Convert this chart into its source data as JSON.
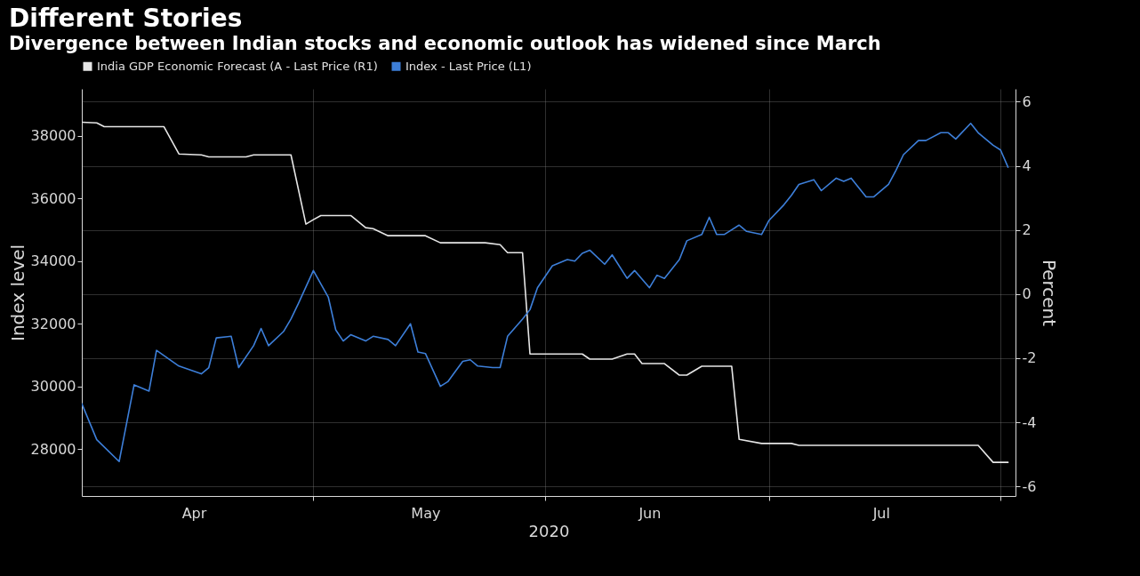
{
  "chart_data": {
    "type": "line",
    "title": "Different Stories",
    "subtitle": "Divergence between Indian stocks and economic outlook has widened since March",
    "xlabel": "2020",
    "ylabel": "Index level",
    "y2label": "Percent",
    "xlim": [
      "--03-31",
      "--08-03"
    ],
    "xticks": [
      {
        "value": "--04-15",
        "label": "Apr"
      },
      {
        "value": "--05-01",
        "label": null
      },
      {
        "value": "--05-16",
        "label": "May"
      },
      {
        "value": "--06-01",
        "label": null
      },
      {
        "value": "--06-15",
        "label": "Jun"
      },
      {
        "value": "--07-01",
        "label": null
      },
      {
        "value": "--07-16",
        "label": "Jul"
      },
      {
        "value": "--08-01",
        "label": null
      }
    ],
    "ylim": [
      26500,
      39500
    ],
    "yticks": [
      28000,
      30000,
      32000,
      34000,
      36000,
      38000
    ],
    "y2lim": [
      -6.3,
      6.4
    ],
    "y2ticks": [
      -6,
      -4,
      -2,
      0,
      2,
      4,
      6
    ],
    "grid": true,
    "legend": "top left",
    "line_style": "solid",
    "series": [
      {
        "name": "India GDP Economic Forecast (A - Last Price (R1)",
        "color": "#e6e6e6",
        "axis": "y2",
        "x": [
          "--03-31",
          "--04-02",
          "--04-03",
          "--04-11",
          "--04-13",
          "--04-16",
          "--04-17",
          "--04-22",
          "--04-23",
          "--04-28",
          "--04-30",
          "--05-01",
          "--05-02",
          "--05-06",
          "--05-08",
          "--05-09",
          "--05-11",
          "--05-16",
          "--05-18",
          "--05-24",
          "--05-26",
          "--05-27",
          "--05-29",
          "--05-30",
          "--06-06",
          "--06-07",
          "--06-10",
          "--06-12",
          "--06-13",
          "--06-14",
          "--06-17",
          "--06-19",
          "--06-20",
          "--06-22",
          "--06-26",
          "--06-27",
          "--06-30",
          "--07-04",
          "--07-05",
          "--07-29",
          "--07-31",
          "--08-02"
        ],
        "values": [
          5.36,
          5.34,
          5.22,
          5.22,
          4.37,
          4.34,
          4.28,
          4.28,
          4.34,
          4.34,
          2.18,
          2.32,
          2.45,
          2.45,
          2.07,
          2.04,
          1.82,
          1.82,
          1.6,
          1.6,
          1.54,
          1.29,
          1.29,
          -1.87,
          -1.87,
          -2.03,
          -2.03,
          -1.87,
          -1.87,
          -2.17,
          -2.17,
          -2.53,
          -2.53,
          -2.25,
          -2.25,
          -4.53,
          -4.66,
          -4.66,
          -4.72,
          -4.72,
          -5.25,
          -5.25
        ]
      },
      {
        "name": "Index - Last Price (L1)",
        "color": "#3d7fd9",
        "x": [
          "--03-31",
          "--04-02",
          "--04-05",
          "--04-07",
          "--04-09",
          "--04-10",
          "--04-13",
          "--04-16",
          "--04-17",
          "--04-18",
          "--04-20",
          "--04-21",
          "--04-23",
          "--04-24",
          "--04-25",
          "--04-27",
          "--04-28",
          "--04-29",
          "--05-01",
          "--05-03",
          "--05-04",
          "--05-05",
          "--05-06",
          "--05-08",
          "--05-09",
          "--05-11",
          "--05-12",
          "--05-14",
          "--05-15",
          "--05-16",
          "--05-18",
          "--05-19",
          "--05-21",
          "--05-22",
          "--05-23",
          "--05-25",
          "--05-26",
          "--05-27",
          "--05-29",
          "--05-30",
          "--05-31",
          "--06-02",
          "--06-04",
          "--06-05",
          "--06-06",
          "--06-07",
          "--06-09",
          "--06-10",
          "--06-12",
          "--06-13",
          "--06-15",
          "--06-16",
          "--06-17",
          "--06-19",
          "--06-20",
          "--06-22",
          "--06-23",
          "--06-24",
          "--06-25",
          "--06-27",
          "--06-28",
          "--06-30",
          "--07-01",
          "--07-03",
          "--07-04",
          "--07-05",
          "--07-07",
          "--07-08",
          "--07-10",
          "--07-11",
          "--07-12",
          "--07-14",
          "--07-15",
          "--07-17",
          "--07-18",
          "--07-19",
          "--07-21",
          "--07-22",
          "--07-24",
          "--07-25",
          "--07-26",
          "--07-28",
          "--07-29",
          "--07-31",
          "--08-01",
          "--08-02"
        ],
        "values": [
          29450,
          28300,
          27600,
          30050,
          29850,
          31150,
          30650,
          30400,
          30600,
          31550,
          31600,
          30600,
          31300,
          31850,
          31300,
          31750,
          32150,
          32650,
          33700,
          32850,
          31800,
          31450,
          31650,
          31450,
          31600,
          31500,
          31300,
          32000,
          31100,
          31050,
          30000,
          30150,
          30800,
          30850,
          30650,
          30600,
          30600,
          31600,
          32150,
          32450,
          33150,
          33850,
          34050,
          34000,
          34250,
          34350,
          33900,
          34200,
          33450,
          33700,
          33150,
          33550,
          33450,
          34050,
          34650,
          34850,
          35400,
          34850,
          34850,
          35150,
          34950,
          34850,
          35300,
          35800,
          36100,
          36450,
          36600,
          36250,
          36650,
          36550,
          36650,
          36050,
          36050,
          36450,
          36900,
          37400,
          37850,
          37850,
          38100,
          38100,
          37900,
          38400,
          38100,
          37700,
          37550,
          37000
        ]
      }
    ]
  }
}
